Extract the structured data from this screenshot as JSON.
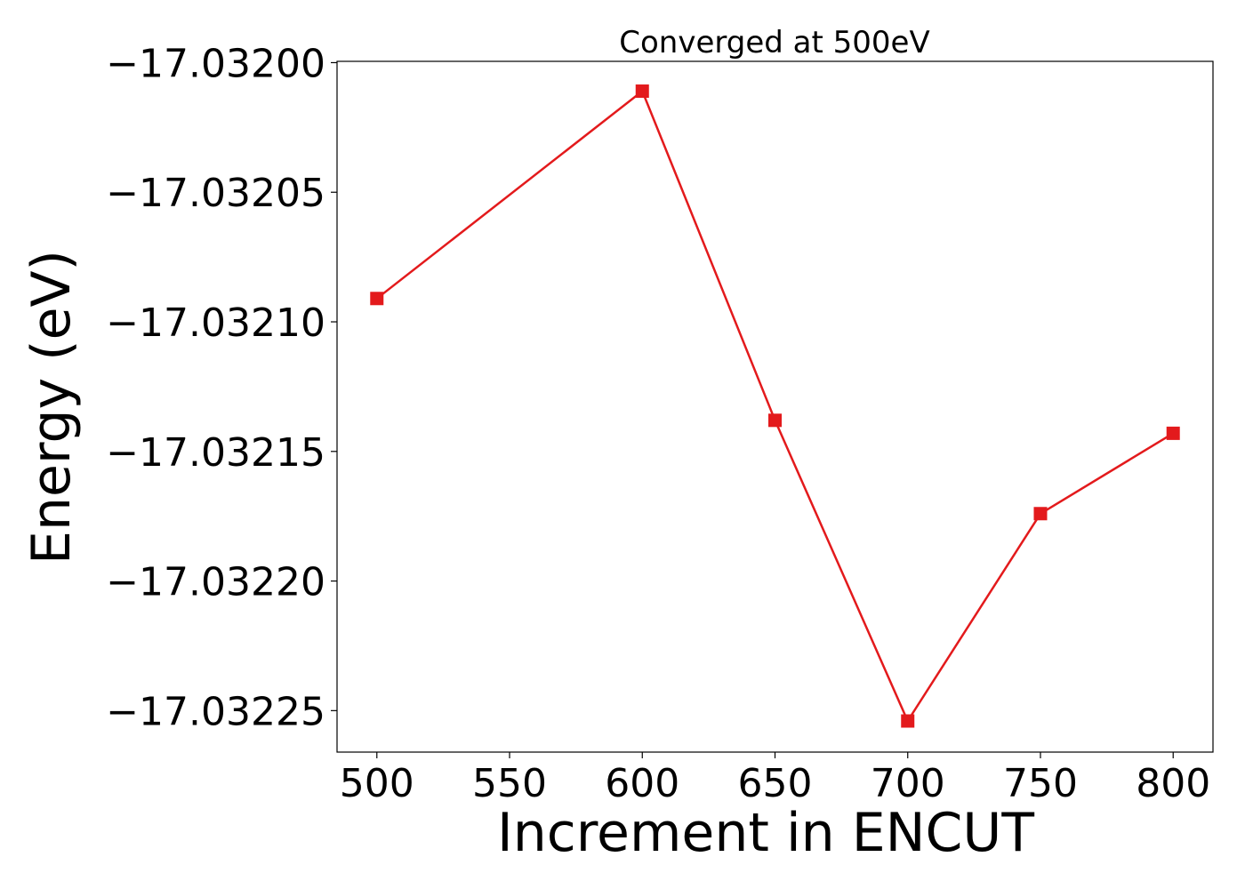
{
  "chart_data": {
    "type": "line",
    "title": "Converged at 500eV",
    "xlabel": "Increment in ENCUT",
    "ylabel": "Energy (eV)",
    "x": [
      500,
      600,
      650,
      700,
      750,
      800
    ],
    "series": [
      {
        "values": [
          -17.032091,
          -17.032011,
          -17.032138,
          -17.032254,
          -17.032174,
          -17.032143
        ],
        "color": "#e31a1c",
        "marker": "square"
      }
    ],
    "xticks": [
      500,
      550,
      600,
      650,
      700,
      750,
      800
    ],
    "xtick_labels": [
      "500",
      "550",
      "600",
      "650",
      "700",
      "750",
      "800"
    ],
    "yticks": [
      -17.032,
      -17.03205,
      -17.0321,
      -17.03215,
      -17.0322,
      -17.03225
    ],
    "ytick_labels": [
      "−17.03200",
      "−17.03205",
      "−17.03210",
      "−17.03215",
      "−17.03220",
      "−17.03225"
    ],
    "xlim": [
      485,
      815
    ],
    "ylim": [
      -17.032266,
      -17.0319995
    ],
    "grid": false,
    "legend": false
  }
}
